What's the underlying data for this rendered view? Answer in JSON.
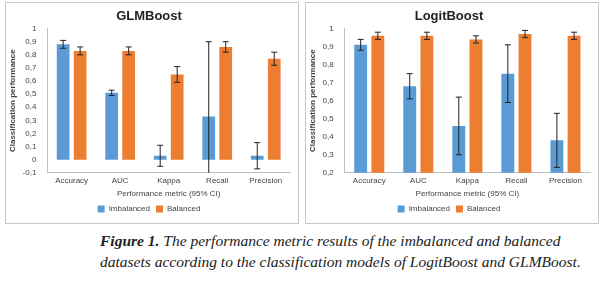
{
  "chart_data": [
    {
      "type": "bar",
      "title": "GLMBoost",
      "x_label": "Performance metric (95% CI)",
      "y_label": "Classification performance",
      "categories": [
        "Accuracy",
        "AUC",
        "Kappa",
        "Recall",
        "Precision"
      ],
      "series": [
        {
          "name": "Imbalanced",
          "color": "#5b9bd5",
          "values": [
            0.88,
            0.51,
            0.03,
            0.33,
            0.03
          ],
          "error": [
            0.03,
            0.02,
            0.08,
            0.57,
            0.1
          ]
        },
        {
          "name": "Balanced",
          "color": "#ed7d31",
          "values": [
            0.83,
            0.83,
            0.65,
            0.86,
            0.77
          ],
          "error": [
            0.03,
            0.03,
            0.06,
            0.04,
            0.05
          ]
        }
      ],
      "ylim": [
        -0.1,
        1
      ],
      "yticks": [
        {
          "value": -0.1,
          "label": "-0,1"
        },
        0,
        {
          "value": 0.1,
          "label": "0,1"
        },
        {
          "value": 0.2,
          "label": "0,2"
        },
        {
          "value": 0.3,
          "label": "0,3"
        },
        {
          "value": 0.4,
          "label": "0,4"
        },
        {
          "value": 0.5,
          "label": "0,5"
        },
        {
          "value": 0.6,
          "label": "0,6"
        },
        {
          "value": 0.7,
          "label": "0,7"
        },
        {
          "value": 0.8,
          "label": "0,8"
        },
        {
          "value": 0.9,
          "label": "0,9"
        },
        1
      ],
      "grid": false,
      "legend": "bottom"
    },
    {
      "type": "bar",
      "title": "LogitBoost",
      "x_label": "Performance metric (95% CI)",
      "y_label": "Classification performance",
      "categories": [
        "Accuracy",
        "AUC",
        "Kappa",
        "Recall",
        "Precision"
      ],
      "series": [
        {
          "name": "Imbalanced",
          "color": "#5b9bd5",
          "values": [
            0.91,
            0.68,
            0.46,
            0.75,
            0.38
          ],
          "error": [
            0.03,
            0.07,
            0.16,
            0.16,
            0.15
          ]
        },
        {
          "name": "Balanced",
          "color": "#ed7d31",
          "values": [
            0.96,
            0.96,
            0.94,
            0.97,
            0.96
          ],
          "error": [
            0.02,
            0.02,
            0.02,
            0.02,
            0.02
          ]
        }
      ],
      "ylim": [
        0.2,
        1
      ],
      "yticks": [
        {
          "value": 0.2,
          "label": "0,2"
        },
        {
          "value": 0.3,
          "label": "0,3"
        },
        {
          "value": 0.4,
          "label": "0,4"
        },
        {
          "value": 0.5,
          "label": "0,5"
        },
        {
          "value": 0.6,
          "label": "0,6"
        },
        {
          "value": 0.7,
          "label": "0,7"
        },
        {
          "value": 0.8,
          "label": "0,8"
        },
        {
          "value": 0.9,
          "label": "0,9"
        },
        1
      ],
      "grid": false,
      "legend": "bottom"
    }
  ],
  "caption": {
    "label": "Figure 1.",
    "text": "The performance metric results of the imbalanced and balanced datasets according to the classification models of LogitBoost and GLMBoost."
  }
}
